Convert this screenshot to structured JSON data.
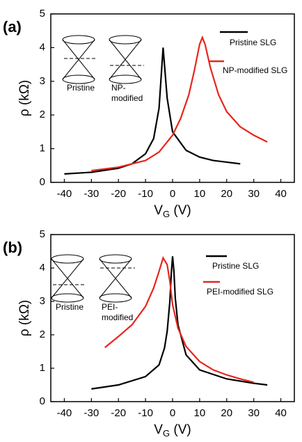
{
  "chart_data": [
    {
      "type": "line",
      "panel_label": "(a)",
      "y_label": "ρ (kΩ)",
      "x_label": [
        "V",
        "G",
        " (V)"
      ],
      "xlim": [
        -45,
        45
      ],
      "ylim": [
        0,
        5
      ],
      "xticks": [
        -40,
        -30,
        -20,
        -10,
        0,
        10,
        20,
        30,
        40
      ],
      "yticks": [
        0,
        1,
        2,
        3,
        4,
        5
      ],
      "inset_labels": [
        [
          "Pristine"
        ],
        [
          "NP-",
          "modified"
        ]
      ],
      "series": [
        {
          "name": "Pristine SLG",
          "color": "#000000",
          "x": [
            -40,
            -30,
            -20,
            -15,
            -10,
            -7,
            -5,
            -4,
            -3.5,
            -3,
            -2,
            0,
            5,
            10,
            15,
            20,
            25
          ],
          "values": [
            0.25,
            0.3,
            0.42,
            0.55,
            0.85,
            1.3,
            2.2,
            3.4,
            4.0,
            3.5,
            2.5,
            1.5,
            0.95,
            0.75,
            0.65,
            0.6,
            0.55
          ]
        },
        {
          "name": "NP-modified SLG",
          "color": "#e8251c",
          "x": [
            -30,
            -20,
            -10,
            -5,
            0,
            3,
            6,
            8,
            10,
            11,
            12,
            14,
            17,
            20,
            25,
            30,
            35
          ],
          "values": [
            0.35,
            0.45,
            0.65,
            0.9,
            1.4,
            1.9,
            2.6,
            3.3,
            4.1,
            4.3,
            4.1,
            3.4,
            2.6,
            2.1,
            1.65,
            1.4,
            1.2
          ]
        }
      ]
    },
    {
      "type": "line",
      "panel_label": "(b)",
      "y_label": "ρ (kΩ)",
      "x_label": [
        "V",
        "G",
        " (V)"
      ],
      "xlim": [
        -45,
        45
      ],
      "ylim": [
        0,
        5
      ],
      "xticks": [
        -40,
        -30,
        -20,
        -10,
        0,
        10,
        20,
        30,
        40
      ],
      "yticks": [
        0,
        1,
        2,
        3,
        4,
        5
      ],
      "inset_labels": [
        [
          "Pristine"
        ],
        [
          "PEI-",
          "modified"
        ]
      ],
      "series": [
        {
          "name": "Pristine SLG",
          "color": "#000000",
          "x": [
            -30,
            -20,
            -10,
            -5,
            -3,
            -2,
            -1,
            -0.5,
            0,
            0.5,
            1,
            2,
            5,
            10,
            20,
            30,
            35
          ],
          "values": [
            0.38,
            0.5,
            0.75,
            1.1,
            1.6,
            2.1,
            3.0,
            3.8,
            4.35,
            3.9,
            3.1,
            2.3,
            1.4,
            0.95,
            0.68,
            0.55,
            0.5
          ]
        },
        {
          "name": "PEI-modified SLG",
          "color": "#e8251c",
          "x": [
            -25,
            -20,
            -15,
            -10,
            -7,
            -5,
            -3.5,
            -2,
            -1,
            0,
            2,
            5,
            10,
            15,
            20,
            25,
            30
          ],
          "values": [
            1.62,
            1.95,
            2.3,
            2.85,
            3.4,
            3.9,
            4.3,
            4.1,
            3.6,
            2.9,
            2.2,
            1.65,
            1.2,
            0.95,
            0.8,
            0.68,
            0.58
          ]
        }
      ]
    }
  ]
}
